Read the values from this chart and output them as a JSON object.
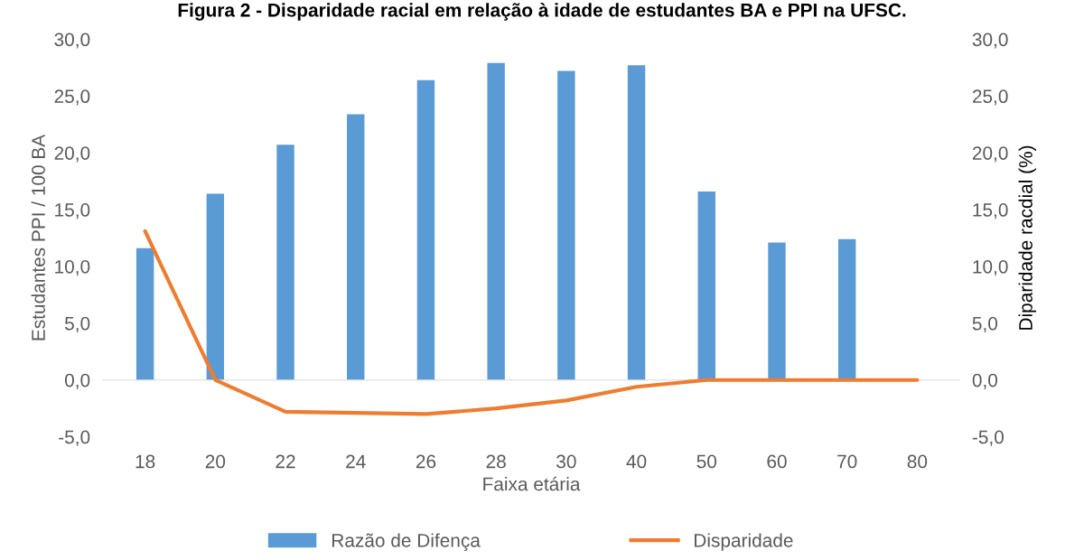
{
  "chart_data": {
    "type": "bar",
    "title": "Figura 2 - Disparidade racial em relação à idade de estudantes BA e PPI na UFSC.",
    "categories": [
      "18",
      "20",
      "22",
      "24",
      "26",
      "28",
      "30",
      "40",
      "50",
      "60",
      "70",
      "80"
    ],
    "series": [
      {
        "name": "Razão de Difença",
        "color": "#5b9bd5",
        "values": [
          11.6,
          16.4,
          20.7,
          23.4,
          26.4,
          27.9,
          27.2,
          27.7,
          16.6,
          12.1,
          12.4,
          null
        ]
      },
      {
        "name": "Disparidade",
        "type": "line",
        "axis": "y2",
        "color": "#ed7d31",
        "values": [
          13.1,
          0.0,
          -2.8,
          -2.9,
          -3.0,
          -2.5,
          -1.8,
          -0.6,
          0.0,
          0.0,
          0.0,
          0.0
        ]
      }
    ],
    "xlabel": "Faixa etária",
    "ylabel": "Estudantes PPI / 100 BA",
    "y2label": "Diparidade racdial (%)",
    "ylim": [
      -5,
      30
    ],
    "yticks": [
      {
        "value": -5,
        "label": "-5,0"
      },
      {
        "value": 0,
        "label": "0,0"
      },
      {
        "value": 5,
        "label": "5,0"
      },
      {
        "value": 10,
        "label": "10,0"
      },
      {
        "value": 15,
        "label": "15,0"
      },
      {
        "value": 20,
        "label": "20,0"
      },
      {
        "value": 25,
        "label": "25,0"
      },
      {
        "value": 30,
        "label": "30,0"
      }
    ],
    "y2lim": [
      -5,
      30
    ],
    "y2ticks": [
      {
        "value": -5,
        "label": "-5,0"
      },
      {
        "value": 0,
        "label": "0,0"
      },
      {
        "value": 5,
        "label": "5,0"
      },
      {
        "value": 10,
        "label": "10,0"
      },
      {
        "value": 15,
        "label": "15,0"
      },
      {
        "value": 20,
        "label": "20,0"
      },
      {
        "value": 25,
        "label": "25,0"
      },
      {
        "value": 30,
        "label": "30,0"
      }
    ],
    "legend": "bottom"
  }
}
